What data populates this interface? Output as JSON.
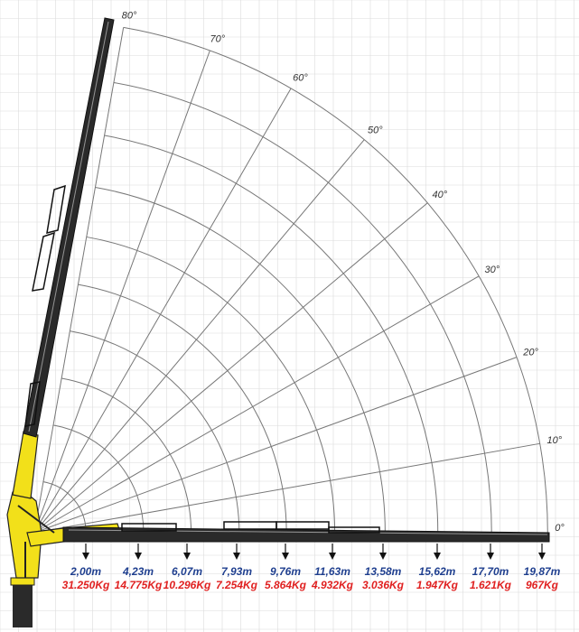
{
  "angles": [
    "0°",
    "10°",
    "20°",
    "30°",
    "40°",
    "50°",
    "60°",
    "70°",
    "80°"
  ],
  "reach_capacity": [
    {
      "reach": "2,00m",
      "load": "31.250Kg"
    },
    {
      "reach": "4,23m",
      "load": "14.775Kg"
    },
    {
      "reach": "6,07m",
      "load": "10.296Kg"
    },
    {
      "reach": "7,93m",
      "load": "7.254Kg"
    },
    {
      "reach": "9,76m",
      "load": "5.864Kg"
    },
    {
      "reach": "11,63m",
      "load": "4.932Kg"
    },
    {
      "reach": "13,58m",
      "load": "3.036Kg"
    },
    {
      "reach": "15,62m",
      "load": "1.947Kg"
    },
    {
      "reach": "17,70m",
      "load": "1.621Kg"
    },
    {
      "reach": "19,87m",
      "load": "967Kg"
    }
  ],
  "colors": {
    "reach": "#1f3f8f",
    "load": "#e02020",
    "crane_yellow": "#f2e01a",
    "boom_black": "#2a2a2a",
    "grid": "#dcdcdc",
    "arc": "#777777"
  }
}
